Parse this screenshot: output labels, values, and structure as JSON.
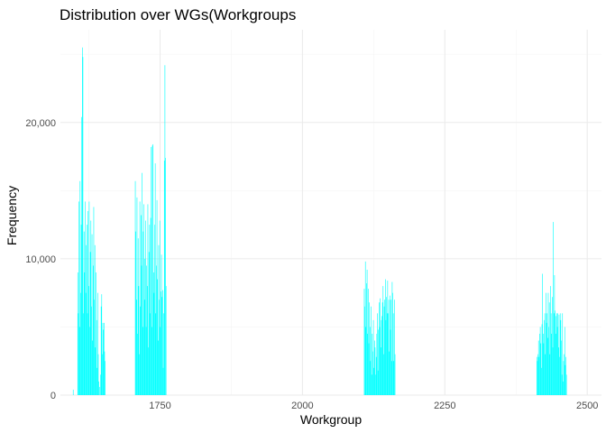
{
  "chart_data": {
    "type": "histogram",
    "title": "Distribution over WGs(Workgroups",
    "xlabel": "Workgroup",
    "ylabel": "Frequency",
    "xlim": [
      1575,
      2525
    ],
    "ylim": [
      0,
      26800
    ],
    "x_ticks": [
      1750,
      2000,
      2250,
      2500
    ],
    "x_tick_labels": [
      "1750",
      "2000",
      "2250",
      "2500"
    ],
    "y_ticks": [
      0,
      10000,
      20000
    ],
    "y_tick_labels": [
      "0",
      "10,000",
      "20,000"
    ],
    "grid": true,
    "legend": "none",
    "bar_color": "#00FFFF",
    "groups": [
      {
        "start": 1597,
        "values": [
          400,
          0
        ]
      },
      {
        "start": 1605,
        "values": [
          9000,
          6000,
          14200,
          5000,
          15700,
          7500,
          12500,
          20400,
          25500,
          24800,
          6000,
          12000,
          9000,
          14200,
          7500,
          11000,
          12500,
          6000,
          13500,
          8000,
          14200,
          5000,
          10500,
          12800,
          6500,
          11800,
          4000,
          9500,
          13800,
          7000,
          11000,
          3500,
          9000,
          5500,
          2000,
          7500,
          3000,
          1000,
          600,
          0,
          1500,
          6500,
          7400,
          3000,
          5300,
          4800,
          5300,
          3200,
          2500
        ]
      },
      {
        "start": 1706,
        "values": [
          15700,
          12000,
          7000,
          14500,
          4500,
          11500,
          8000,
          3000,
          14200,
          6500,
          13200,
          9500,
          16300,
          5000,
          12000,
          14000,
          7000,
          10000,
          12800,
          5000,
          9500,
          8000,
          14000,
          3500,
          10500,
          12500,
          6000,
          13000,
          18200,
          5000,
          18300,
          18400,
          9000,
          7500,
          12500,
          17000,
          6000,
          9500,
          14300,
          8500,
          4000,
          11000,
          7000,
          12800,
          5000,
          7600,
          10300,
          7200,
          7700,
          2000,
          6000,
          17200,
          24200,
          17400,
          8000
        ]
      },
      {
        "start": 2108,
        "values": [
          7800,
          6500,
          9800,
          5000,
          8200,
          9200,
          4500,
          7800,
          3800,
          6800,
          5000,
          2500,
          6500,
          1500,
          4500,
          3200,
          5500,
          2000,
          4000,
          3500,
          1500,
          2800,
          4500,
          6000,
          1800,
          4800,
          6800,
          5000,
          7100,
          3500,
          5500,
          5800,
          6800,
          8000,
          3000,
          6500,
          7000,
          8500,
          5500,
          7200,
          6000,
          8400,
          6000,
          7000,
          3200,
          7300,
          4800,
          7000,
          2500,
          8300,
          7500,
          6000,
          2500,
          7000,
          3000
        ]
      },
      {
        "start": 2411,
        "values": [
          2800,
          2500,
          3000,
          4000,
          2800,
          4500,
          5000,
          3800,
          2000,
          5200,
          8900,
          4500,
          3800,
          5500,
          6000,
          3000,
          7500,
          5300,
          6000,
          4200,
          7500,
          5000,
          6800,
          3000,
          8000,
          6000,
          4500,
          7200,
          3500,
          12700,
          6000,
          8800,
          6200,
          4500,
          5800,
          6000,
          5000,
          6000,
          3500,
          5900,
          2800,
          6000,
          5500,
          4000,
          1500,
          6000,
          1000,
          2500,
          3000,
          5000,
          2200,
          2800,
          1500
        ]
      }
    ]
  }
}
